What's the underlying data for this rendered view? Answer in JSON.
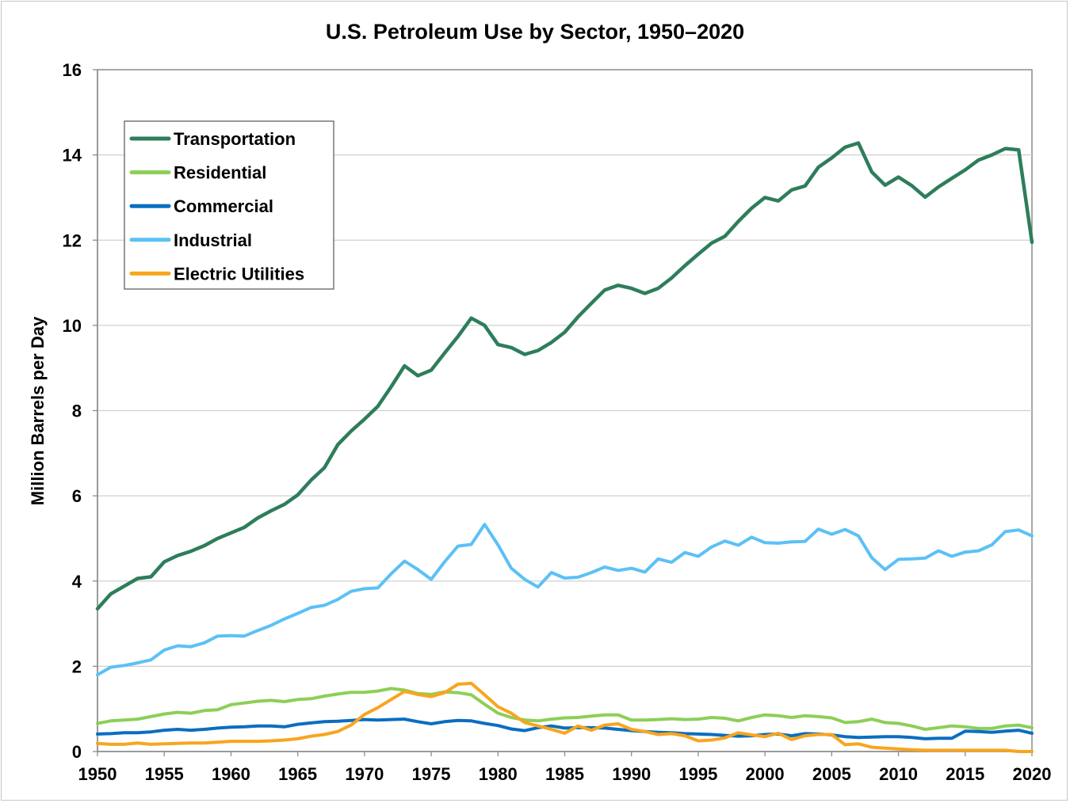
{
  "chart_data": {
    "type": "line",
    "title": "U.S. Petroleum Use by Sector, 1950–2020",
    "xlabel": "",
    "ylabel": "Million Barrels per Day",
    "xlim": [
      1950,
      2020
    ],
    "ylim": [
      0,
      16
    ],
    "x_ticks": [
      1950,
      1955,
      1960,
      1965,
      1970,
      1975,
      1980,
      1985,
      1990,
      1995,
      2000,
      2005,
      2010,
      2015,
      2020
    ],
    "y_ticks": [
      0,
      2,
      4,
      6,
      8,
      10,
      12,
      14,
      16
    ],
    "grid": "horizontal",
    "legend_position": "top-left",
    "x": [
      1950,
      1951,
      1952,
      1953,
      1954,
      1955,
      1956,
      1957,
      1958,
      1959,
      1960,
      1961,
      1962,
      1963,
      1964,
      1965,
      1966,
      1967,
      1968,
      1969,
      1970,
      1971,
      1972,
      1973,
      1974,
      1975,
      1976,
      1977,
      1978,
      1979,
      1980,
      1981,
      1982,
      1983,
      1984,
      1985,
      1986,
      1987,
      1988,
      1989,
      1990,
      1991,
      1992,
      1993,
      1994,
      1995,
      1996,
      1997,
      1998,
      1999,
      2000,
      2001,
      2002,
      2003,
      2004,
      2005,
      2006,
      2007,
      2008,
      2009,
      2010,
      2011,
      2012,
      2013,
      2014,
      2015,
      2016,
      2017,
      2018,
      2019,
      2020
    ],
    "series": [
      {
        "name": "Transportation",
        "color": "#2e7d5b",
        "values": [
          3.35,
          3.7,
          3.88,
          4.06,
          4.1,
          4.45,
          4.6,
          4.7,
          4.83,
          5.0,
          5.13,
          5.26,
          5.48,
          5.65,
          5.8,
          6.02,
          6.37,
          6.66,
          7.2,
          7.52,
          7.8,
          8.1,
          8.56,
          9.05,
          8.82,
          8.95,
          9.35,
          9.74,
          10.17,
          10.0,
          9.55,
          9.48,
          9.32,
          9.41,
          9.6,
          9.84,
          10.2,
          10.52,
          10.83,
          10.94,
          10.87,
          10.75,
          10.87,
          11.11,
          11.4,
          11.67,
          11.93,
          12.09,
          12.44,
          12.75,
          13.0,
          12.92,
          13.18,
          13.27,
          13.71,
          13.93,
          14.18,
          14.28,
          13.6,
          13.29,
          13.48,
          13.28,
          13.01,
          13.25,
          13.45,
          13.65,
          13.88,
          14.0,
          14.15,
          14.12,
          11.95
        ]
      },
      {
        "name": "Residential",
        "color": "#8dcf56",
        "values": [
          0.66,
          0.72,
          0.74,
          0.76,
          0.82,
          0.88,
          0.92,
          0.9,
          0.96,
          0.98,
          1.1,
          1.14,
          1.18,
          1.2,
          1.17,
          1.22,
          1.24,
          1.3,
          1.35,
          1.39,
          1.39,
          1.42,
          1.48,
          1.44,
          1.36,
          1.34,
          1.4,
          1.38,
          1.33,
          1.11,
          0.9,
          0.8,
          0.74,
          0.72,
          0.76,
          0.79,
          0.8,
          0.83,
          0.86,
          0.86,
          0.74,
          0.74,
          0.75,
          0.77,
          0.75,
          0.76,
          0.8,
          0.78,
          0.72,
          0.8,
          0.86,
          0.84,
          0.8,
          0.84,
          0.82,
          0.79,
          0.68,
          0.7,
          0.76,
          0.68,
          0.66,
          0.6,
          0.52,
          0.56,
          0.6,
          0.58,
          0.54,
          0.54,
          0.6,
          0.62,
          0.56
        ]
      },
      {
        "name": "Commercial",
        "color": "#0a6ec1",
        "values": [
          0.41,
          0.42,
          0.44,
          0.44,
          0.46,
          0.5,
          0.52,
          0.5,
          0.52,
          0.55,
          0.57,
          0.58,
          0.6,
          0.6,
          0.58,
          0.64,
          0.67,
          0.7,
          0.71,
          0.73,
          0.75,
          0.74,
          0.75,
          0.76,
          0.7,
          0.65,
          0.7,
          0.73,
          0.72,
          0.66,
          0.61,
          0.53,
          0.49,
          0.56,
          0.6,
          0.55,
          0.56,
          0.56,
          0.55,
          0.52,
          0.49,
          0.47,
          0.45,
          0.44,
          0.42,
          0.41,
          0.4,
          0.38,
          0.36,
          0.37,
          0.4,
          0.41,
          0.37,
          0.42,
          0.41,
          0.39,
          0.35,
          0.33,
          0.34,
          0.35,
          0.35,
          0.33,
          0.3,
          0.31,
          0.31,
          0.48,
          0.47,
          0.45,
          0.48,
          0.5,
          0.43
        ]
      },
      {
        "name": "Industrial",
        "color": "#5bc1f5",
        "values": [
          1.8,
          1.98,
          2.02,
          2.08,
          2.15,
          2.38,
          2.48,
          2.46,
          2.55,
          2.71,
          2.72,
          2.71,
          2.84,
          2.96,
          3.11,
          3.24,
          3.38,
          3.43,
          3.57,
          3.76,
          3.82,
          3.84,
          4.17,
          4.47,
          4.27,
          4.04,
          4.45,
          4.82,
          4.86,
          5.33,
          4.85,
          4.3,
          4.04,
          3.86,
          4.2,
          4.07,
          4.09,
          4.2,
          4.33,
          4.25,
          4.3,
          4.21,
          4.52,
          4.44,
          4.67,
          4.58,
          4.8,
          4.94,
          4.84,
          5.03,
          4.9,
          4.89,
          4.92,
          4.93,
          5.22,
          5.1,
          5.21,
          5.06,
          4.55,
          4.27,
          4.51,
          4.52,
          4.54,
          4.71,
          4.58,
          4.68,
          4.71,
          4.85,
          5.16,
          5.2,
          5.06
        ]
      },
      {
        "name": "Electric Utilities",
        "color": "#f8a51e",
        "values": [
          0.19,
          0.17,
          0.17,
          0.2,
          0.17,
          0.18,
          0.19,
          0.2,
          0.2,
          0.22,
          0.24,
          0.24,
          0.24,
          0.25,
          0.27,
          0.3,
          0.36,
          0.4,
          0.47,
          0.62,
          0.87,
          1.03,
          1.22,
          1.41,
          1.34,
          1.29,
          1.38,
          1.58,
          1.6,
          1.33,
          1.05,
          0.9,
          0.68,
          0.6,
          0.52,
          0.43,
          0.6,
          0.5,
          0.62,
          0.65,
          0.52,
          0.47,
          0.4,
          0.42,
          0.37,
          0.25,
          0.27,
          0.32,
          0.44,
          0.39,
          0.35,
          0.43,
          0.28,
          0.37,
          0.4,
          0.4,
          0.16,
          0.18,
          0.1,
          0.08,
          0.06,
          0.04,
          0.03,
          0.03,
          0.03,
          0.03,
          0.03,
          0.03,
          0.03,
          0.0,
          0.0
        ]
      }
    ]
  }
}
